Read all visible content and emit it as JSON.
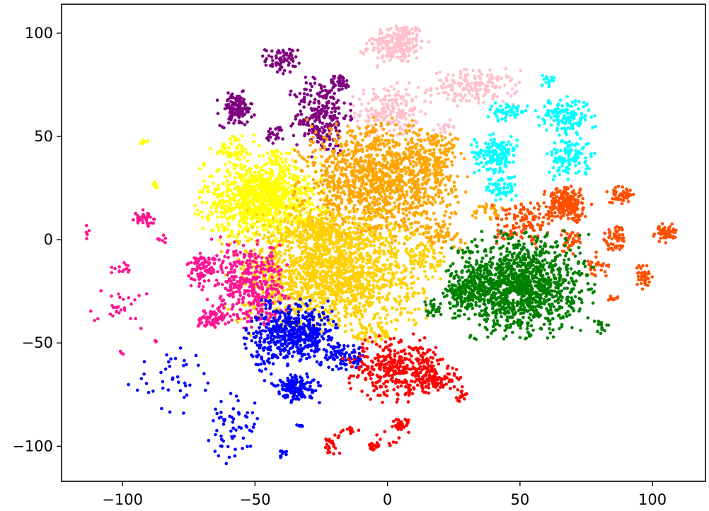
{
  "chart_data": {
    "type": "scatter",
    "title": "",
    "xlabel": "",
    "ylabel": "",
    "xlim": [
      -123,
      120
    ],
    "ylim": [
      -117,
      114
    ],
    "xticks": [
      -100,
      -50,
      0,
      50,
      100
    ],
    "yticks": [
      100,
      50,
      0,
      -50,
      -100
    ],
    "xtick_labels": [
      "−100",
      "−50",
      "0",
      "50",
      "100"
    ],
    "ytick_labels": [
      "100",
      "50",
      "0",
      "−50",
      "−100"
    ],
    "grid": false,
    "legend": "none",
    "series": [
      {
        "color": "#ffc0cb",
        "clusters": [
          {
            "cx": 4,
            "cy": 95,
            "sx": 5,
            "sy": 5,
            "n": 220
          },
          {
            "cx": 0,
            "cy": 62,
            "sx": 6,
            "sy": 6,
            "n": 200
          },
          {
            "cx": 33,
            "cy": 74,
            "sx": 8,
            "sy": 4,
            "n": 170
          },
          {
            "cx": 22,
            "cy": 55,
            "sx": 2,
            "sy": 2,
            "n": 14
          },
          {
            "cx": -8,
            "cy": 92,
            "sx": 1.5,
            "sy": 2,
            "n": 8
          }
        ]
      },
      {
        "color": "#800080",
        "clusters": [
          {
            "cx": -40,
            "cy": 87,
            "sx": 3,
            "sy": 3,
            "n": 70
          },
          {
            "cx": -57,
            "cy": 63,
            "sx": 3,
            "sy": 4,
            "n": 120
          },
          {
            "cx": -25,
            "cy": 60,
            "sx": 5,
            "sy": 9,
            "n": 260
          },
          {
            "cx": -18,
            "cy": 76,
            "sx": 2,
            "sy": 2,
            "n": 40
          },
          {
            "cx": -42,
            "cy": 51,
            "sx": 2,
            "sy": 2,
            "n": 25
          }
        ]
      },
      {
        "color": "#00ffff",
        "clusters": [
          {
            "cx": 41,
            "cy": 42,
            "sx": 4,
            "sy": 4,
            "n": 160
          },
          {
            "cx": 45,
            "cy": 62,
            "sx": 4,
            "sy": 2,
            "n": 50
          },
          {
            "cx": 67,
            "cy": 60,
            "sx": 5,
            "sy": 4,
            "n": 150
          },
          {
            "cx": 69,
            "cy": 40,
            "sx": 4,
            "sy": 5,
            "n": 120
          },
          {
            "cx": 43,
            "cy": 25,
            "sx": 3,
            "sy": 3,
            "n": 60
          },
          {
            "cx": 60,
            "cy": 77,
            "sx": 1.5,
            "sy": 1.5,
            "n": 15
          }
        ]
      },
      {
        "color": "#ffff00",
        "clusters": [
          {
            "cx": -47,
            "cy": 20,
            "sx": 11,
            "sy": 9,
            "n": 1000
          },
          {
            "cx": -58,
            "cy": 44,
            "sx": 4,
            "sy": 3,
            "n": 60
          },
          {
            "cx": -42,
            "cy": 40,
            "sx": 3,
            "sy": 2,
            "n": 30
          },
          {
            "cx": -92,
            "cy": 47,
            "sx": 1,
            "sy": 1,
            "n": 8
          },
          {
            "cx": -88,
            "cy": 26,
            "sx": 1,
            "sy": 1,
            "n": 8
          }
        ]
      },
      {
        "color": "#ffa500",
        "clusters": [
          {
            "cx": -3,
            "cy": 28,
            "sx": 14,
            "sy": 13,
            "n": 1300
          },
          {
            "cx": 17,
            "cy": 40,
            "sx": 5,
            "sy": 6,
            "n": 120
          },
          {
            "cx": 20,
            "cy": 2,
            "sx": 4,
            "sy": 3,
            "n": 60
          },
          {
            "cx": 38,
            "cy": 14,
            "sx": 3,
            "sy": 2,
            "n": 30
          }
        ]
      },
      {
        "color": "#ffd000",
        "clusters": [
          {
            "cx": -22,
            "cy": -16,
            "sx": 17,
            "sy": 13,
            "n": 1600
          },
          {
            "cx": -5,
            "cy": -45,
            "sx": 4,
            "sy": 3,
            "n": 50
          },
          {
            "cx": -25,
            "cy": 5,
            "sx": 8,
            "sy": 5,
            "n": 200
          },
          {
            "cx": 15,
            "cy": -10,
            "sx": 4,
            "sy": 4,
            "n": 60
          }
        ]
      },
      {
        "color": "#ff1493",
        "clusters": [
          {
            "cx": -52,
            "cy": -22,
            "sx": 7,
            "sy": 10,
            "n": 400
          },
          {
            "cx": -70,
            "cy": -15,
            "sx": 2.5,
            "sy": 4,
            "n": 80
          },
          {
            "cx": -66,
            "cy": -38,
            "sx": 3,
            "sy": 2.5,
            "n": 70
          },
          {
            "cx": -92,
            "cy": 10,
            "sx": 2,
            "sy": 2,
            "n": 35
          },
          {
            "cx": -99,
            "cy": -14,
            "sx": 3,
            "sy": 1.5,
            "n": 14
          },
          {
            "cx": -101,
            "cy": -34,
            "sx": 5,
            "sy": 4,
            "n": 28
          },
          {
            "cx": -85,
            "cy": 0,
            "sx": 1,
            "sy": 2,
            "n": 8
          },
          {
            "cx": -113,
            "cy": 5,
            "sx": 0.5,
            "sy": 3,
            "n": 5
          },
          {
            "cx": -87,
            "cy": -50,
            "sx": 1,
            "sy": 1,
            "n": 3
          },
          {
            "cx": -100,
            "cy": -56,
            "sx": 0.5,
            "sy": 1,
            "n": 3
          }
        ]
      },
      {
        "color": "#0000ff",
        "clusters": [
          {
            "cx": -35,
            "cy": -45,
            "sx": 8,
            "sy": 7,
            "n": 500
          },
          {
            "cx": -34,
            "cy": -72,
            "sx": 4,
            "sy": 3,
            "n": 150
          },
          {
            "cx": -16,
            "cy": -57,
            "sx": 4,
            "sy": 3,
            "n": 80
          },
          {
            "cx": -57,
            "cy": -90,
            "sx": 5,
            "sy": 8,
            "n": 60
          },
          {
            "cx": -80,
            "cy": -70,
            "sx": 8,
            "sy": 8,
            "n": 40
          },
          {
            "cx": -47,
            "cy": -60,
            "sx": 3,
            "sy": 6,
            "n": 25
          },
          {
            "cx": -40,
            "cy": -104,
            "sx": 1,
            "sy": 1,
            "n": 10
          },
          {
            "cx": -33,
            "cy": -90,
            "sx": 1,
            "sy": 0.5,
            "n": 6
          }
        ]
      },
      {
        "color": "#ff0000",
        "clusters": [
          {
            "cx": 3,
            "cy": -62,
            "sx": 9,
            "sy": 7,
            "n": 350
          },
          {
            "cx": 18,
            "cy": -68,
            "sx": 5,
            "sy": 3,
            "n": 90
          },
          {
            "cx": 28,
            "cy": -76,
            "sx": 1.5,
            "sy": 1.5,
            "n": 14
          },
          {
            "cx": 5,
            "cy": -90,
            "sx": 1.5,
            "sy": 1.5,
            "n": 35
          },
          {
            "cx": -5,
            "cy": -100,
            "sx": 1,
            "sy": 1,
            "n": 20
          },
          {
            "cx": -21,
            "cy": -100,
            "sx": 2,
            "sy": 3,
            "n": 25
          },
          {
            "cx": -15,
            "cy": -93,
            "sx": 2,
            "sy": 1,
            "n": 10
          },
          {
            "cx": 0,
            "cy": -97,
            "sx": 2,
            "sy": 2,
            "n": 8
          }
        ]
      },
      {
        "color": "#ff5000",
        "clusters": [
          {
            "cx": 68,
            "cy": 17,
            "sx": 4,
            "sy": 4,
            "n": 230
          },
          {
            "cx": 51,
            "cy": 8,
            "sx": 5,
            "sy": 5,
            "n": 120
          },
          {
            "cx": 69,
            "cy": 0,
            "sx": 2,
            "sy": 3,
            "n": 40
          },
          {
            "cx": 88,
            "cy": 22,
            "sx": 3,
            "sy": 2,
            "n": 50
          },
          {
            "cx": 86,
            "cy": 1,
            "sx": 2,
            "sy": 3,
            "n": 60
          },
          {
            "cx": 105,
            "cy": 3,
            "sx": 2,
            "sy": 2,
            "n": 60
          },
          {
            "cx": 97,
            "cy": -18,
            "sx": 1.5,
            "sy": 3,
            "n": 35
          },
          {
            "cx": 78,
            "cy": -13,
            "sx": 2,
            "sy": 3,
            "n": 25
          },
          {
            "cx": 85,
            "cy": -28,
            "sx": 1,
            "sy": 1,
            "n": 10
          },
          {
            "cx": 82,
            "cy": -12,
            "sx": 1,
            "sy": 1,
            "n": 6
          }
        ]
      },
      {
        "color": "#008000",
        "clusters": [
          {
            "cx": 50,
            "cy": -22,
            "sx": 12,
            "sy": 11,
            "n": 1300
          },
          {
            "cx": 30,
            "cy": -25,
            "sx": 4,
            "sy": 4,
            "n": 150
          },
          {
            "cx": 18,
            "cy": -33,
            "sx": 2,
            "sy": 2,
            "n": 30
          },
          {
            "cx": 80,
            "cy": -42,
            "sx": 2,
            "sy": 2,
            "n": 15
          }
        ]
      }
    ]
  }
}
